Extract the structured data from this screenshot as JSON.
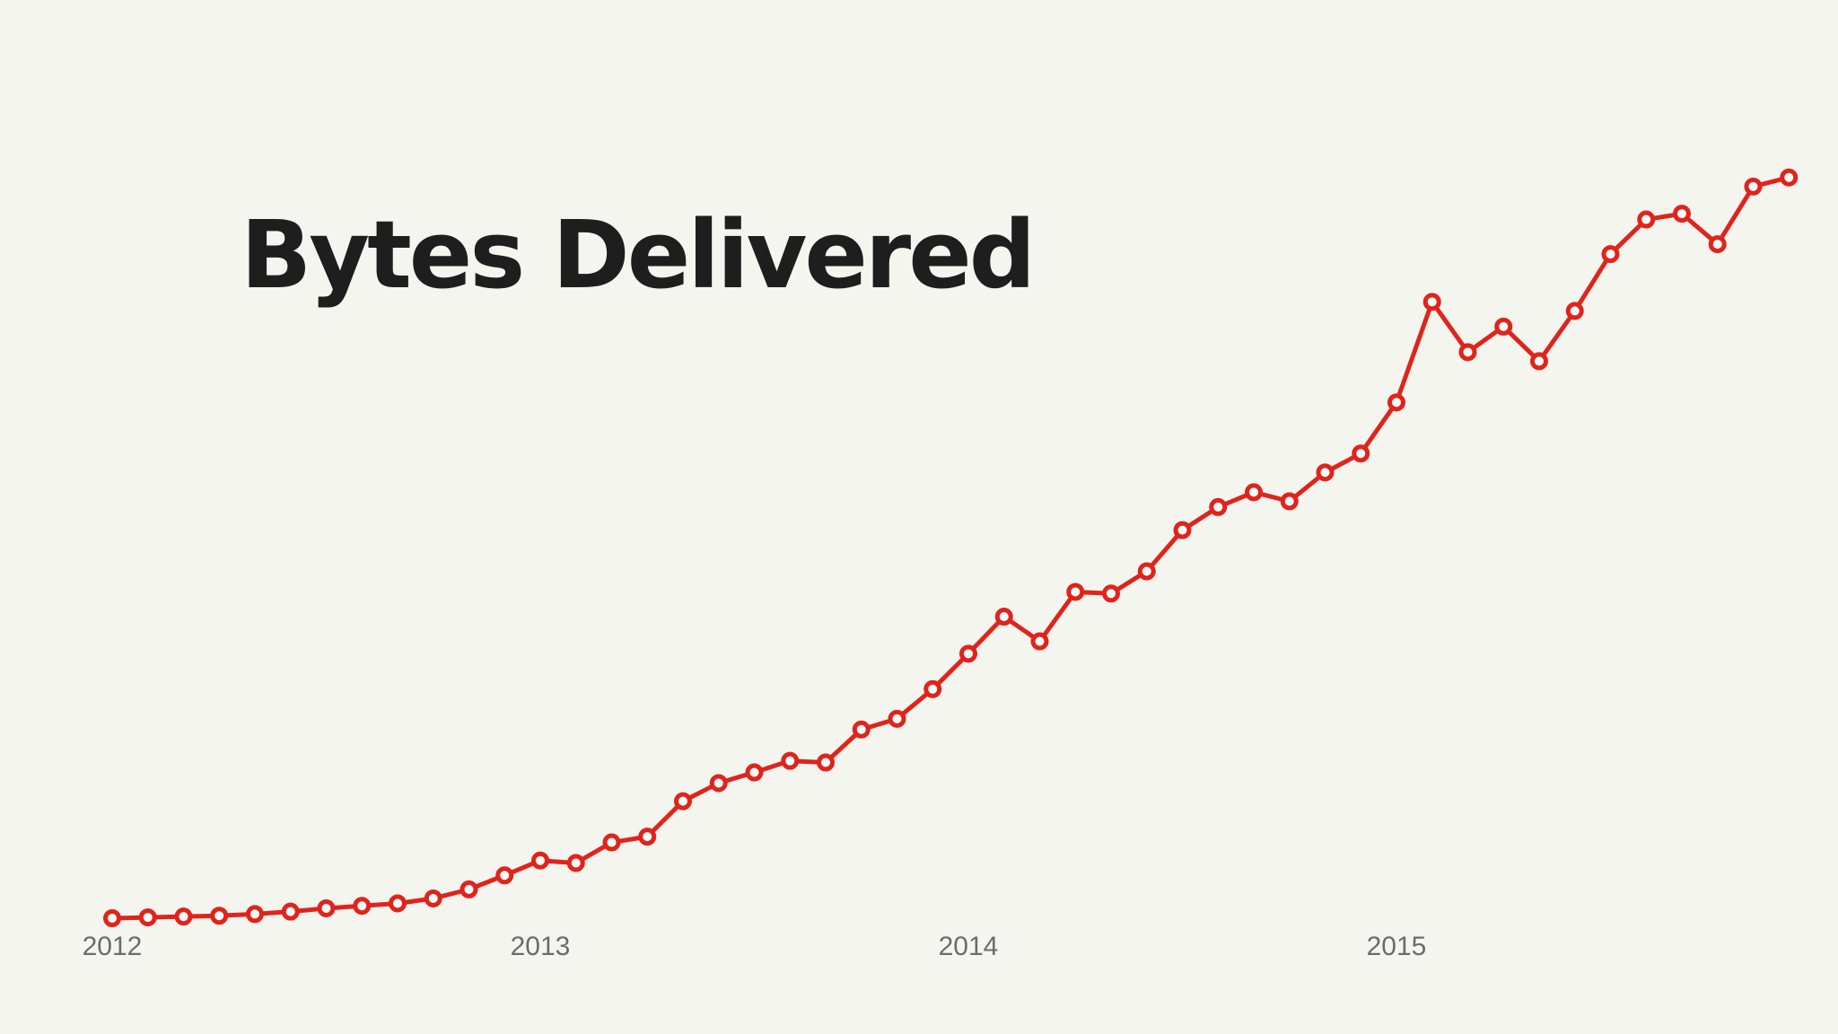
{
  "chart_data": {
    "type": "line",
    "title": "Bytes Delivered",
    "xlabel": "",
    "ylabel": "",
    "x_ticks": [
      "2012",
      "2013",
      "2014",
      "2015"
    ],
    "x_start": "2012-01",
    "x_step": "month",
    "values": [
      0.0,
      0.1,
      0.2,
      0.3,
      0.5,
      0.8,
      1.2,
      1.5,
      1.8,
      2.4,
      3.5,
      5.2,
      7.0,
      6.7,
      9.2,
      9.9,
      14.2,
      16.4,
      17.7,
      19.1,
      18.9,
      22.9,
      24.2,
      27.8,
      32.1,
      36.6,
      33.6,
      39.6,
      39.4,
      42.1,
      47.1,
      49.9,
      51.7,
      50.6,
      54.1,
      56.4,
      62.6,
      74.8,
      68.7,
      71.8,
      67.6,
      73.7,
      80.6,
      84.8,
      85.5,
      81.8,
      88.8,
      89.9
    ],
    "ylim": [
      0,
      100
    ],
    "grid": false,
    "legend": "none",
    "colors": {
      "line": "#e0241b",
      "marker_fill": "#ffffff",
      "background": "#f5f5f0",
      "title": "#1e1e1e",
      "tick_label": "#6b6b6b"
    }
  }
}
